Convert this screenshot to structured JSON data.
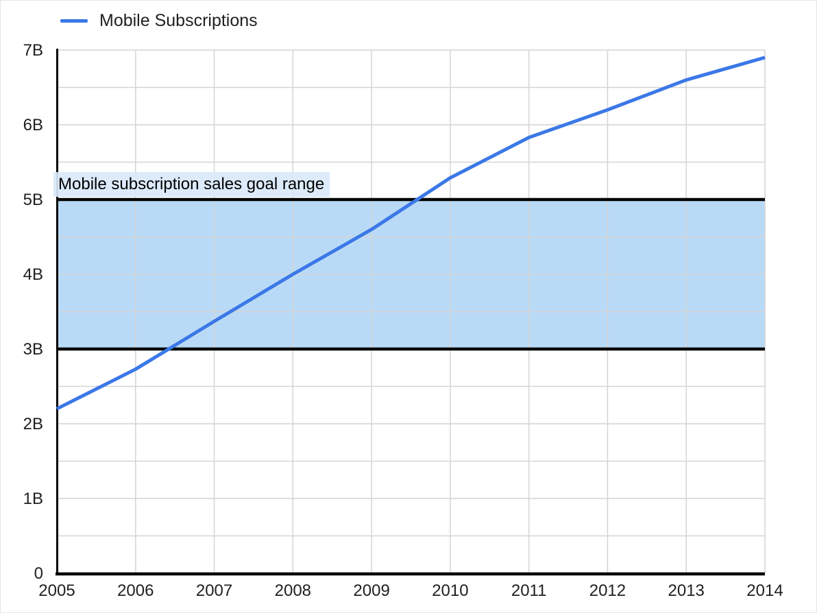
{
  "page": {
    "background": "#ffffff",
    "border_color": "#e4e4e4"
  },
  "legend": {
    "label": "Mobile Subscriptions",
    "swatch_color": "#3b78e7"
  },
  "chart_data": {
    "type": "line",
    "title": "",
    "xlabel": "",
    "ylabel": "",
    "x": [
      2005,
      2006,
      2007,
      2008,
      2009,
      2010,
      2011,
      2012,
      2013,
      2014
    ],
    "x_tick_labels": [
      "2005",
      "2006",
      "2007",
      "2008",
      "2009",
      "2010",
      "2011",
      "2012",
      "2013",
      "2014"
    ],
    "series": [
      {
        "name": "Mobile Subscriptions",
        "color": "#3b78e7",
        "line_width": 5,
        "values": [
          2.2,
          2.73,
          3.37,
          4.0,
          4.6,
          5.29,
          5.83,
          6.2,
          6.6,
          6.9
        ]
      }
    ],
    "ylim": [
      0,
      7
    ],
    "y_ticks": [
      {
        "value": 0,
        "label": "0"
      },
      {
        "value": 1,
        "label": "1B"
      },
      {
        "value": 2,
        "label": "2B"
      },
      {
        "value": 3,
        "label": "3B"
      },
      {
        "value": 4,
        "label": "4B"
      },
      {
        "value": 5,
        "label": "5B"
      },
      {
        "value": 6,
        "label": "6B"
      },
      {
        "value": 7,
        "label": "7B"
      }
    ],
    "grid": {
      "show": true,
      "color": "#d4d4d4",
      "y_minor_step": 0.5
    },
    "axis_color": "#000000",
    "tick_label_color": "#1f1f1f",
    "legend_position": "top-left",
    "band": {
      "from": 3,
      "to": 5,
      "fill": "#b9daf7",
      "border_color": "#000000",
      "label": "Mobile subscription sales goal range",
      "label_bg": "rgba(217,232,250,0.92)",
      "label_color": "#000000"
    }
  }
}
